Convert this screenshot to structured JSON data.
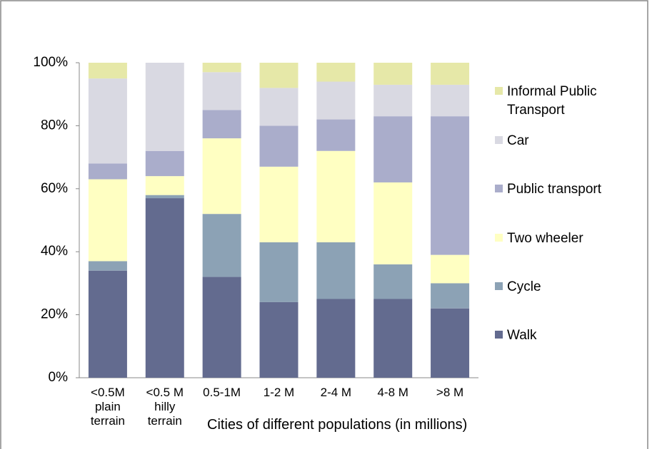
{
  "chart_data": {
    "type": "stacked-bar",
    "categories": [
      "<0.5M\nplain\nterrain",
      "<0.5 M\nhilly\nterrain",
      "0.5-1M",
      "1-2 M",
      "2-4 M",
      "4-8 M",
      ">8 M"
    ],
    "x_label": "Cities of different populations (in millions)",
    "series": [
      {
        "name": "Walk",
        "color": "#636b8f",
        "values": [
          34,
          57,
          32,
          24,
          25,
          25,
          22
        ]
      },
      {
        "name": "Cycle",
        "color": "#8ca2b5",
        "values": [
          3,
          1,
          20,
          19,
          18,
          11,
          8
        ]
      },
      {
        "name": "Two wheeler",
        "color": "#ffffc2",
        "values": [
          26,
          6,
          24,
          24,
          29,
          26,
          9
        ]
      },
      {
        "name": "Public transport",
        "color": "#aaadcb",
        "values": [
          5,
          8,
          9,
          13,
          10,
          21,
          44
        ]
      },
      {
        "name": "Car",
        "color": "#d9d9e2",
        "values": [
          27,
          28,
          12,
          12,
          12,
          10,
          10
        ]
      },
      {
        "name": "Informal Public Transport",
        "color": "#e6e8a8",
        "values": [
          5,
          0,
          3,
          8,
          6,
          7,
          7
        ]
      }
    ],
    "ylim": [
      0,
      100
    ],
    "yticks": [
      {
        "value": 0,
        "label": "0%"
      },
      {
        "value": 20,
        "label": "20%"
      },
      {
        "value": 40,
        "label": "40%"
      },
      {
        "value": 60,
        "label": "60%"
      },
      {
        "value": 80,
        "label": "80%"
      },
      {
        "value": 100,
        "label": "100%"
      }
    ],
    "legend": "right"
  }
}
